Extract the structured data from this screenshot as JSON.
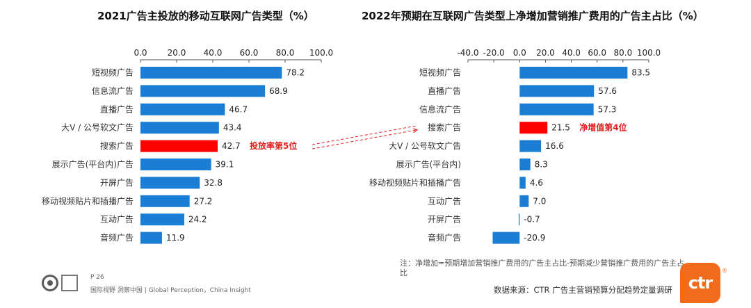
{
  "chart_data": [
    {
      "type": "bar",
      "orientation": "horizontal",
      "title": "2021广告主投放的移动互联网广告类型（%）",
      "xlim": [
        0,
        100
      ],
      "ticks": [
        "0.0",
        "20.0",
        "40.0",
        "60.0",
        "80.0",
        "100.0"
      ],
      "categories": [
        "短视频广告",
        "信息流广告",
        "直播广告",
        "大V / 公号软文广告",
        "搜索广告",
        "展示广告(平台内)广告",
        "开屏广告",
        "移动视频贴片和插播广告",
        "互动广告",
        "音频广告"
      ],
      "values": [
        78.2,
        68.9,
        46.7,
        43.4,
        42.7,
        39.1,
        32.8,
        27.2,
        24.2,
        11.9
      ],
      "value_labels": [
        "78.2",
        "68.9",
        "46.7",
        "43.4",
        "42.7",
        "39.1",
        "32.8",
        "27.2",
        "24.2",
        "11.9"
      ],
      "highlight_index": 4,
      "annotation": "投放率第5位"
    },
    {
      "type": "bar",
      "orientation": "horizontal",
      "title": "2022年预期在互联网广告类型上净增加营销推广费用的广告主占比（%）",
      "xlim": [
        -40,
        100
      ],
      "ticks": [
        "-40.0",
        "-20.0",
        "0.0",
        "20.0",
        "40.0",
        "60.0",
        "80.0",
        "100.0"
      ],
      "categories": [
        "短视频广告",
        "直播广告",
        "信息流广告",
        "搜索广告",
        "大V / 公号软文广告",
        "展示广告(平台内)",
        "移动视频贴片和插播广告",
        "互动广告",
        "开屏广告",
        "音频广告"
      ],
      "values": [
        83.5,
        57.6,
        57.3,
        21.5,
        16.6,
        8.3,
        4.6,
        7.0,
        -0.7,
        -20.9
      ],
      "value_labels": [
        "83.5",
        "57.6",
        "57.3",
        "21.5",
        "16.6",
        "8.3",
        "4.6",
        "7.0",
        "-0.7",
        "-20.9"
      ],
      "highlight_index": 3,
      "annotation": "净增值第4位"
    }
  ],
  "colors": {
    "bar": "#1a7fd4",
    "highlight": "#ff0000",
    "annotation": "#e31d1d",
    "arrow": "#e31d1d"
  },
  "footnote": "注：净增加=预期增加营销推广费用的广告主占比-预期减少营销推广费用的广告主占比",
  "source": "数据来源：CTR 广告主营销预算分配趋势定量调研",
  "page_number": "P 26",
  "tagline": "国际视野  洞察中国  |  Global Perception，China Insight",
  "logo_text": "ctr",
  "logo_reg": "®"
}
